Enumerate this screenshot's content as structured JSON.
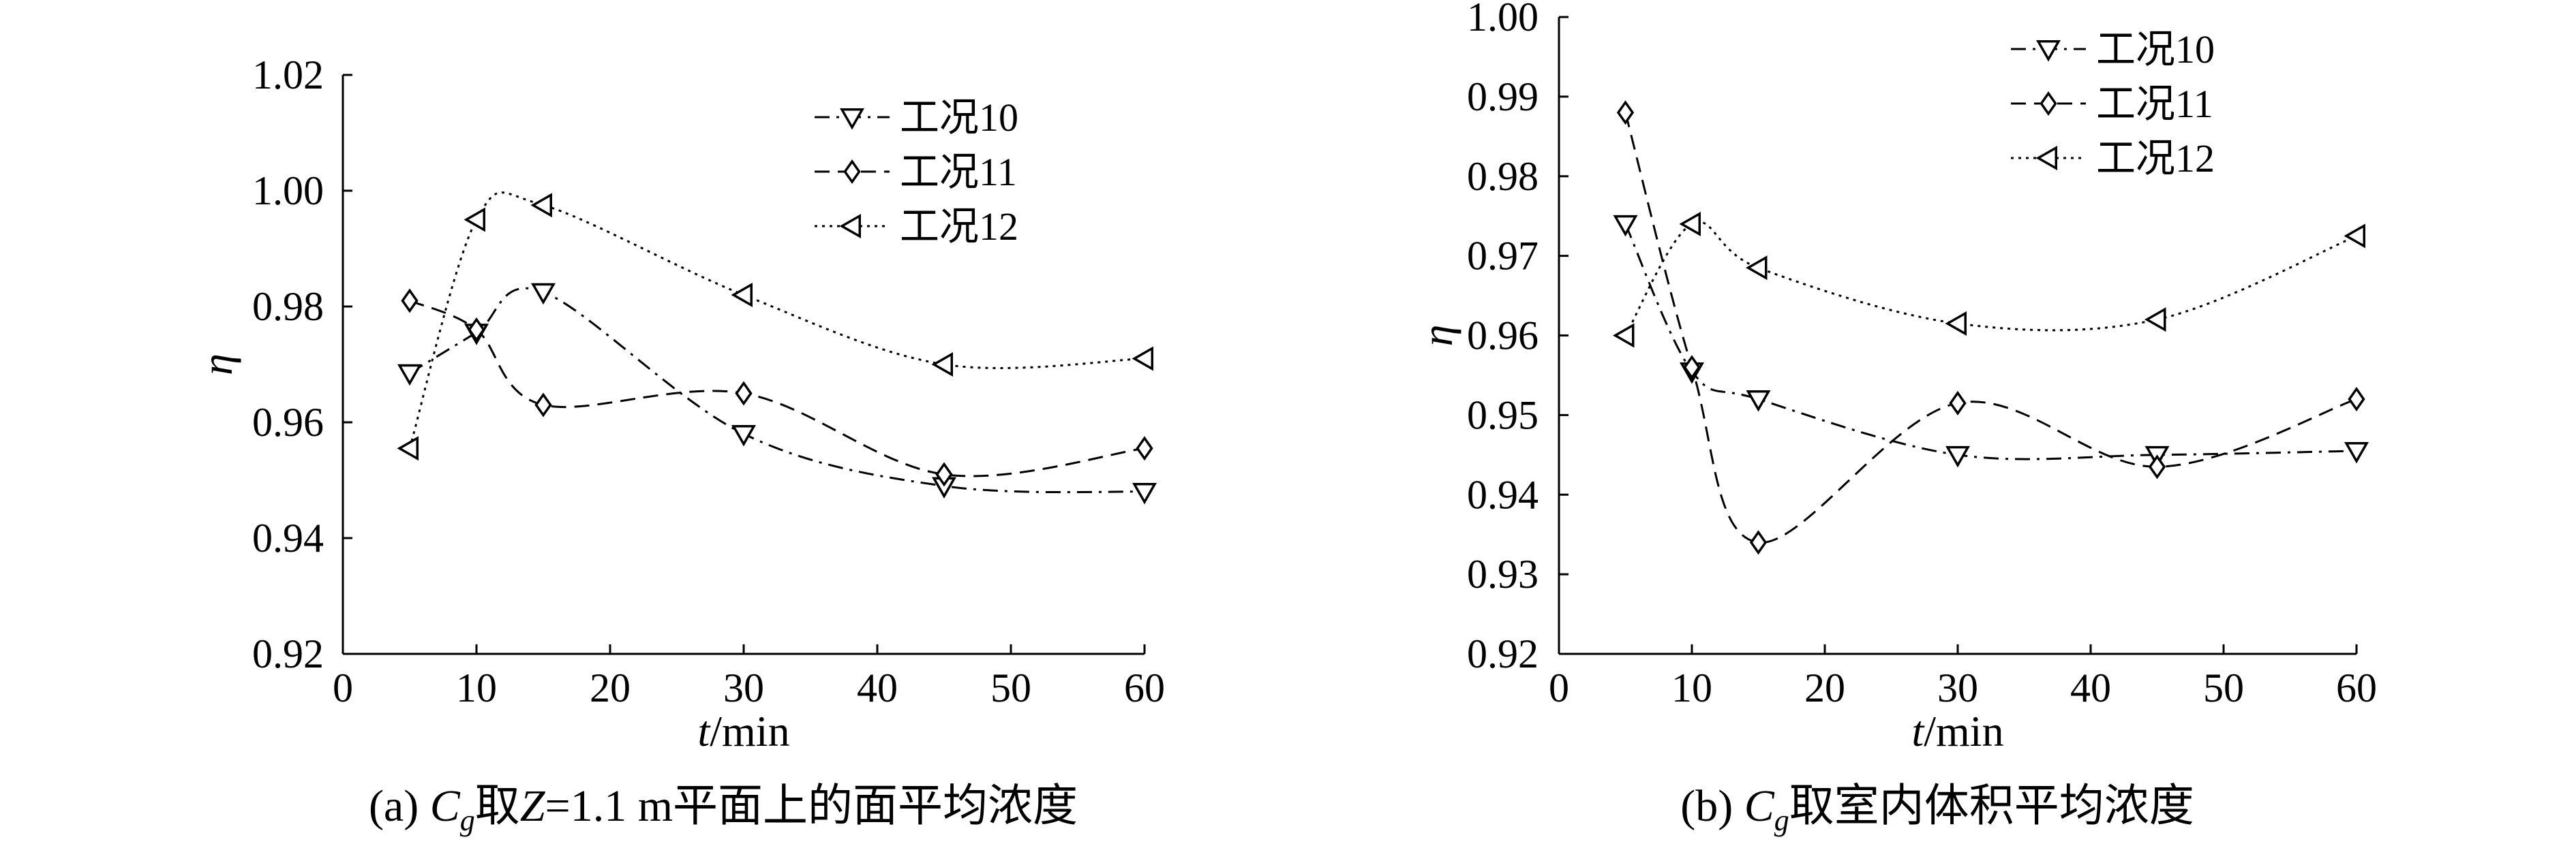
{
  "chart_data": [
    {
      "type": "line",
      "caption": {
        "prefix": "(a) ",
        "c": "C",
        "sub": "g",
        "mid": "取",
        "z": "Z",
        "rest": "=1.1 m平面上的面平均浓度"
      },
      "xlabel": {
        "var": "t",
        "unit": "/min"
      },
      "ylabel": "η",
      "xlim": [
        0,
        60
      ],
      "ylim": [
        0.92,
        1.02
      ],
      "xticks": [
        0,
        10,
        20,
        30,
        40,
        50,
        60
      ],
      "yticks": [
        "0.92",
        "0.94",
        "0.96",
        "0.98",
        "1.00",
        "1.02"
      ],
      "legend_position": "top-right",
      "x": [
        5,
        10,
        15,
        30,
        45,
        60
      ],
      "series": [
        {
          "name": "工况10",
          "marker": "triangle-down",
          "dash": "dashdot",
          "values": [
            0.9685,
            0.9755,
            0.9825,
            0.958,
            0.949,
            0.948
          ]
        },
        {
          "name": "工况11",
          "marker": "diamond",
          "dash": "dashed",
          "values": [
            0.981,
            0.976,
            0.963,
            0.965,
            0.951,
            0.9555
          ]
        },
        {
          "name": "工况12",
          "marker": "triangle-left",
          "dash": "dotted",
          "values": [
            0.9555,
            0.995,
            0.9975,
            0.982,
            0.97,
            0.971
          ]
        }
      ]
    },
    {
      "type": "line",
      "caption": {
        "prefix": "(b) ",
        "c": "C",
        "sub": "g",
        "mid": "取室内体积平均浓度",
        "z": "",
        "rest": ""
      },
      "xlabel": {
        "var": "t",
        "unit": "/min"
      },
      "ylabel": "η",
      "xlim": [
        0,
        60
      ],
      "ylim": [
        0.92,
        1.0
      ],
      "xticks": [
        0,
        10,
        20,
        30,
        40,
        50,
        60
      ],
      "yticks": [
        "0.92",
        "0.93",
        "0.94",
        "0.95",
        "0.96",
        "0.97",
        "0.98",
        "0.99",
        "1.00"
      ],
      "legend_position": "top-right",
      "x": [
        5,
        10,
        15,
        30,
        45,
        60
      ],
      "series": [
        {
          "name": "工况10",
          "marker": "triangle-down",
          "dash": "dashdot",
          "values": [
            0.974,
            0.9555,
            0.952,
            0.945,
            0.945,
            0.9455
          ]
        },
        {
          "name": "工况11",
          "marker": "diamond",
          "dash": "dashed",
          "values": [
            0.988,
            0.956,
            0.934,
            0.9515,
            0.9435,
            0.952
          ]
        },
        {
          "name": "工况12",
          "marker": "triangle-left",
          "dash": "dotted",
          "values": [
            0.96,
            0.974,
            0.9685,
            0.9615,
            0.962,
            0.9725
          ]
        }
      ]
    }
  ]
}
